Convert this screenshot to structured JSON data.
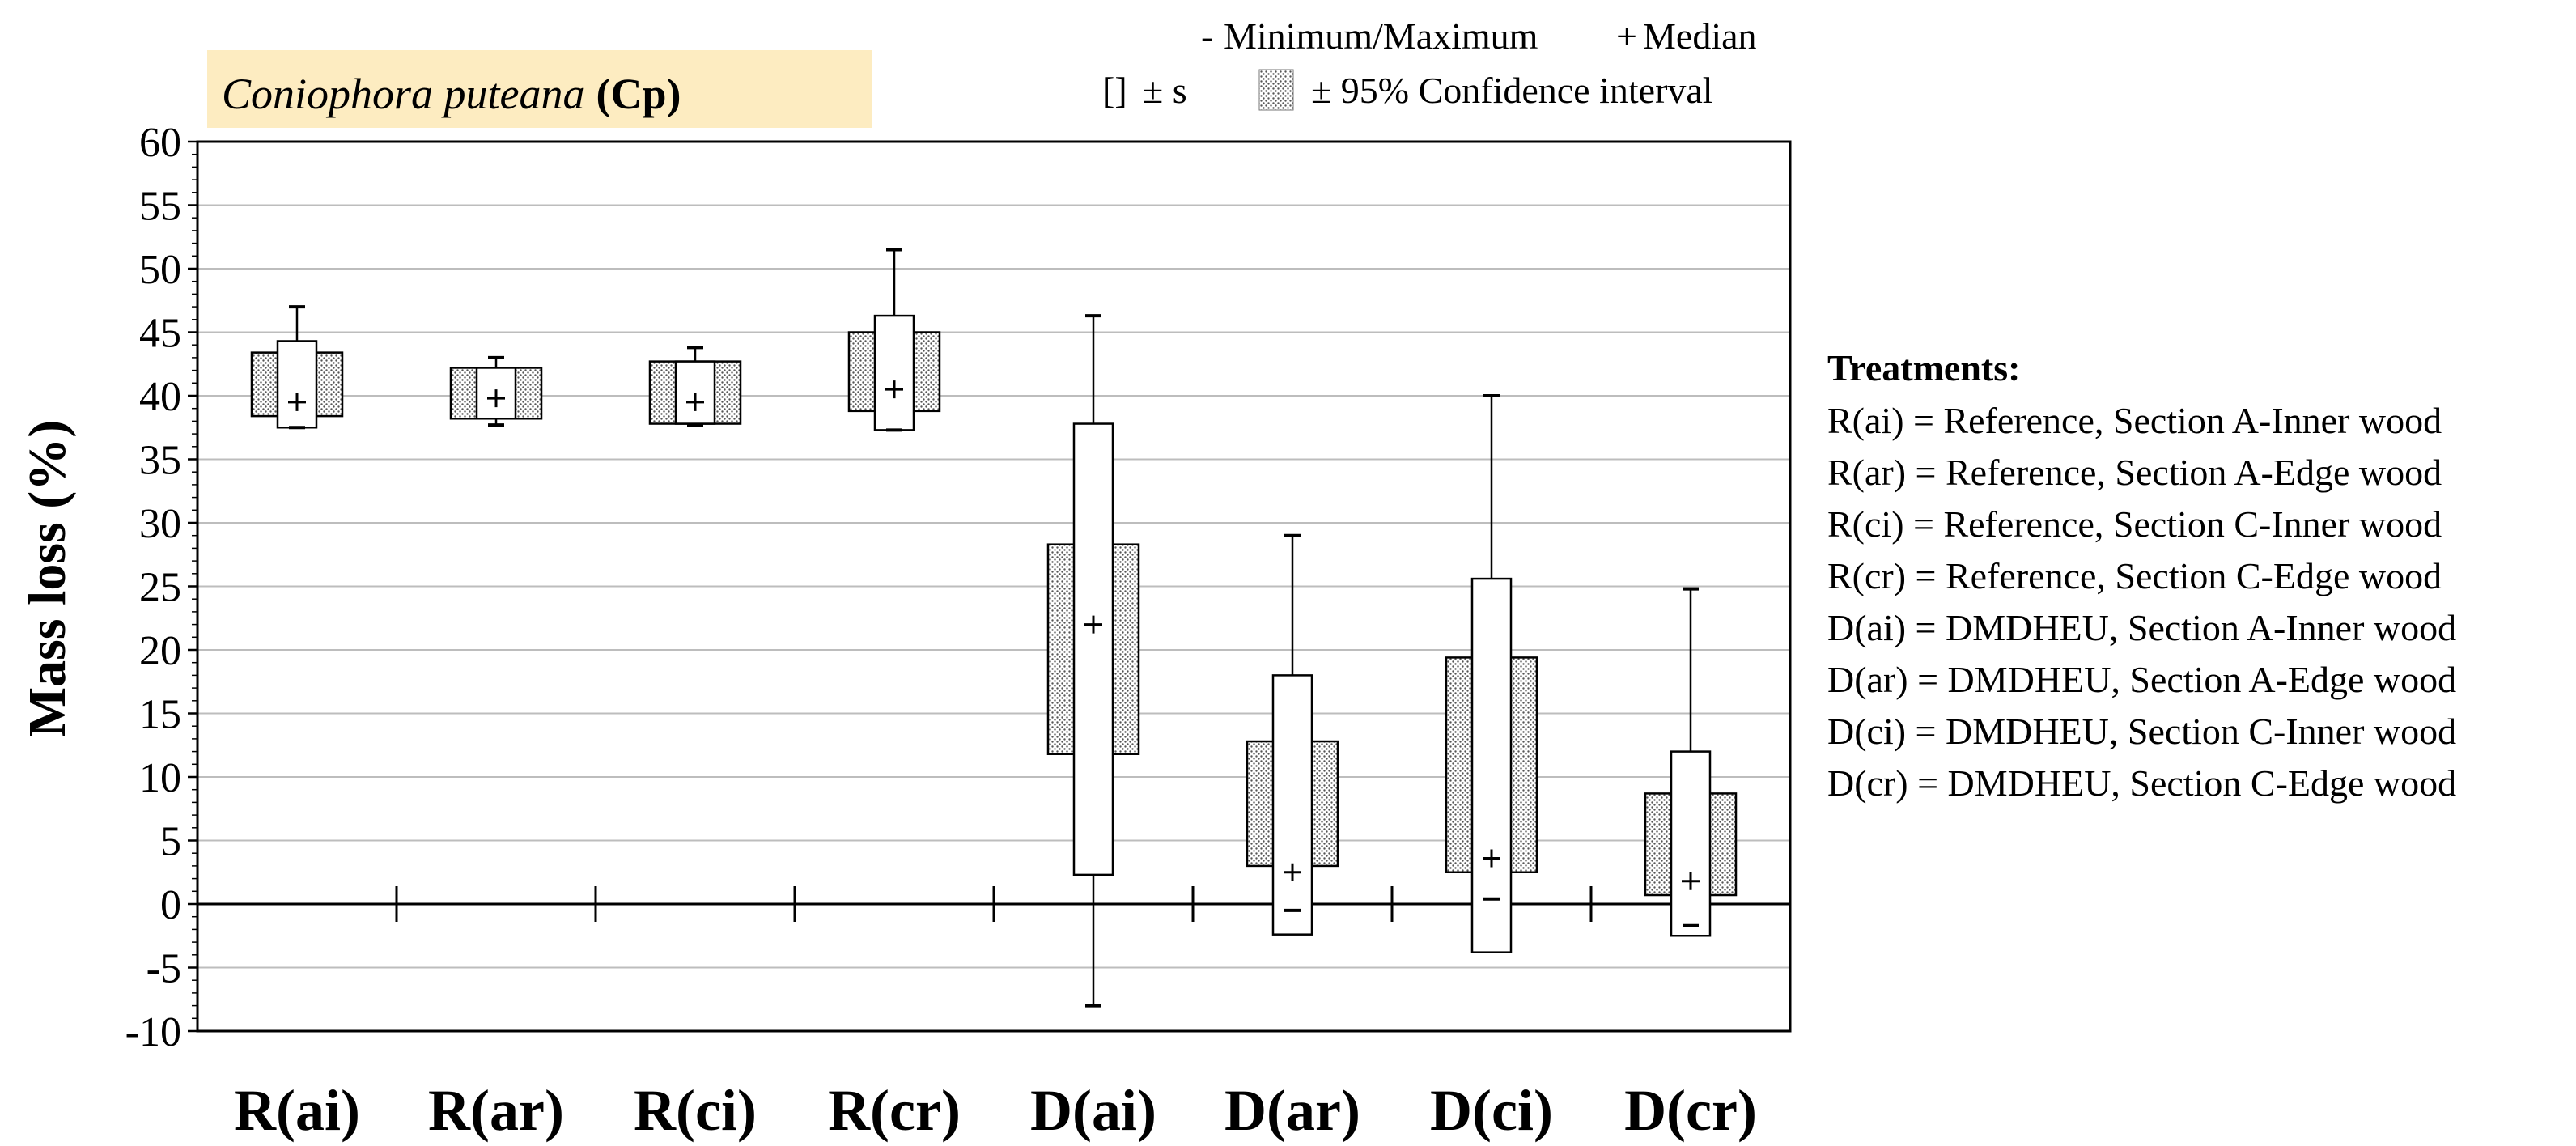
{
  "title_box": {
    "species": "Coniophora puteana",
    "code": "(Cp)",
    "fill": "#fdecc1"
  },
  "legend": {
    "minmax_symbol": "-",
    "minmax_label": "Minimum/Maximum",
    "median_symbol": "+",
    "median_label": "Median",
    "sd_symbol": "[]",
    "sd_label": "± s",
    "ci_label": "± 95% Confidence interval"
  },
  "treatments": {
    "heading": "Treatments:",
    "items": [
      "R(ai) = Reference, Section A-Inner wood",
      "R(ar) = Reference, Section A-Edge wood",
      "R(ci) = Reference, Section C-Inner wood",
      "R(cr) = Reference, Section C-Edge wood",
      "D(ai) = DMDHEU, Section A-Inner wood",
      "D(ar) = DMDHEU, Section A-Edge wood",
      "D(ci) = DMDHEU, Section C-Inner wood",
      "D(cr) = DMDHEU, Section C-Edge wood"
    ]
  },
  "chart_data": {
    "type": "box",
    "title": "Coniophora puteana (Cp)",
    "xlabel": "",
    "ylabel": "Mass loss (%)",
    "ylim": [
      -10,
      60
    ],
    "ytick_step": 5,
    "yticks": [
      "60",
      "55",
      "50",
      "45",
      "40",
      "35",
      "30",
      "25",
      "20",
      "15",
      "10",
      "5",
      "0",
      "-5",
      "-10"
    ],
    "grid": true,
    "categories": [
      "R(ai)",
      "R(ar)",
      "R(ci)",
      "R(cr)",
      "D(ai)",
      "D(ar)",
      "D(ci)",
      "D(cr)"
    ],
    "series": [
      {
        "name": "R(ai)",
        "min": 37.5,
        "max": 47.0,
        "median": 39.5,
        "sd_low": 37.5,
        "sd_high": 44.3,
        "ci_low": 38.4,
        "ci_high": 43.4
      },
      {
        "name": "R(ar)",
        "min": 37.7,
        "max": 43.0,
        "median": 39.8,
        "sd_low": 38.2,
        "sd_high": 42.2,
        "ci_low": 38.2,
        "ci_high": 42.2
      },
      {
        "name": "R(ci)",
        "min": 37.7,
        "max": 43.8,
        "median": 39.5,
        "sd_low": 37.8,
        "sd_high": 42.7,
        "ci_low": 37.8,
        "ci_high": 42.7
      },
      {
        "name": "R(cr)",
        "min": 37.3,
        "max": 51.5,
        "median": 40.5,
        "sd_low": 37.3,
        "sd_high": 46.3,
        "ci_low": 38.8,
        "ci_high": 45.0
      },
      {
        "name": "D(ai)",
        "min": -8.0,
        "max": 46.3,
        "median": 22.0,
        "sd_low": 2.3,
        "sd_high": 37.8,
        "ci_low": 11.8,
        "ci_high": 28.3
      },
      {
        "name": "D(ar)",
        "min": -0.5,
        "max": 29.0,
        "median": 2.5,
        "sd_low": -2.4,
        "sd_high": 18.0,
        "ci_low": 3.0,
        "ci_high": 12.8
      },
      {
        "name": "D(ci)",
        "min": 0.4,
        "max": 40.0,
        "median": 3.6,
        "sd_low": -3.8,
        "sd_high": 25.6,
        "ci_low": 2.5,
        "ci_high": 19.4
      },
      {
        "name": "D(cr)",
        "min": -1.7,
        "max": 24.8,
        "median": 1.8,
        "sd_low": -2.5,
        "sd_high": 12.0,
        "ci_low": 0.7,
        "ci_high": 8.7
      }
    ]
  }
}
